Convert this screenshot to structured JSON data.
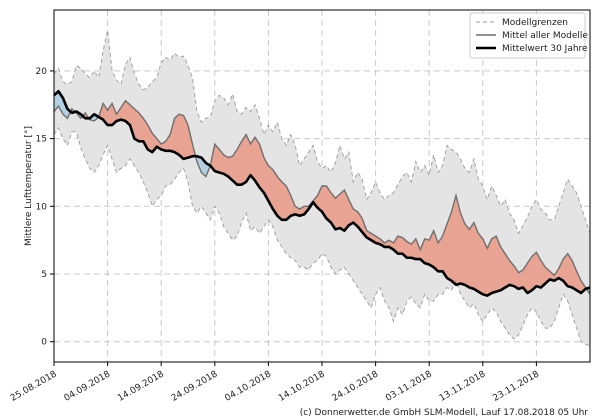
{
  "chart_data": {
    "type": "line",
    "title": "",
    "xlabel": "",
    "ylabel": "Mittlere Lufttemperatur [°]",
    "ylim": [
      -1.5,
      24.5
    ],
    "yticks": [
      0,
      5,
      10,
      15,
      20
    ],
    "xlim": [
      "25.08.2018",
      "03.12.2018"
    ],
    "xtick_labels": [
      "25.08.2018",
      "04.09.2018",
      "14.09.2018",
      "24.09.2018",
      "04.10.2018",
      "14.10.2018",
      "24.10.2018",
      "03.11.2018",
      "13.11.2018",
      "23.11.2018"
    ],
    "grid": true,
    "legend_position": "top-right",
    "legend": [
      {
        "key": "envelope",
        "label": "Modellgrenzen"
      },
      {
        "key": "mean",
        "label": "Mittel aller Modelle"
      },
      {
        "key": "climate",
        "label": "Mittelwert 30 Jahre"
      }
    ],
    "colors": {
      "envelope_fill": "#e4e4e4",
      "envelope_line": "#9a9a9a",
      "mean_line": "#6f6f6f",
      "climate_line": "#000000",
      "above": "#e8a393",
      "below": "#b3d1e3",
      "grid": "#c9c9c9"
    },
    "x": [
      0,
      1,
      2,
      3,
      4,
      5,
      6,
      7,
      8,
      9,
      10,
      11,
      12,
      13,
      14,
      15,
      16,
      17,
      18,
      19,
      20,
      21,
      22,
      23,
      24,
      25,
      26,
      27,
      28,
      29,
      30,
      31,
      32,
      33,
      34,
      35,
      36,
      37,
      38,
      39,
      40,
      41,
      42,
      43,
      44,
      45,
      46,
      47,
      48,
      49,
      50,
      51,
      52,
      53,
      54,
      55,
      56,
      57,
      58,
      59,
      60,
      61,
      62,
      63,
      64,
      65,
      66,
      67,
      68,
      69,
      70,
      71,
      72,
      73,
      74,
      75,
      76,
      77,
      78,
      79,
      80,
      81,
      82,
      83,
      84,
      85,
      86,
      87,
      88,
      89,
      90,
      91,
      92,
      93,
      94,
      95,
      96,
      97,
      98,
      99,
      100,
      101,
      102,
      103,
      104,
      105,
      106,
      107,
      108,
      109,
      110,
      111,
      112,
      113,
      114,
      115,
      116,
      117,
      118,
      119,
      120
    ],
    "series": [
      {
        "name": "Mittelwert 30 Jahre",
        "values": [
          18.2,
          18.5,
          18.0,
          17.2,
          16.9,
          17.0,
          16.8,
          16.5,
          16.5,
          16.8,
          16.6,
          16.4,
          16.0,
          16.0,
          16.3,
          16.4,
          16.3,
          16.0,
          15.0,
          14.8,
          14.8,
          14.2,
          14.0,
          14.4,
          14.2,
          14.1,
          14.1,
          14.0,
          13.8,
          13.5,
          13.6,
          13.7,
          13.7,
          13.6,
          13.2,
          13.0,
          12.6,
          12.5,
          12.4,
          12.2,
          11.9,
          11.6,
          11.6,
          11.8,
          12.3,
          11.9,
          11.4,
          11.0,
          10.4,
          9.8,
          9.3,
          9.0,
          9.0,
          9.3,
          9.4,
          9.3,
          9.4,
          9.8,
          10.3,
          9.9,
          9.6,
          9.1,
          8.8,
          8.3,
          8.4,
          8.2,
          8.6,
          8.8,
          8.5,
          8.1,
          7.7,
          7.5,
          7.3,
          7.2,
          7.0,
          7.0,
          6.8,
          6.5,
          6.5,
          6.2,
          6.2,
          6.1,
          6.1,
          5.8,
          5.7,
          5.5,
          5.2,
          5.2,
          4.7,
          4.5,
          4.2,
          4.3,
          4.2,
          4.0,
          3.9,
          3.7,
          3.5,
          3.4,
          3.6,
          3.7,
          3.8,
          4.0,
          4.2,
          4.1,
          3.9,
          4.0,
          3.6,
          3.8,
          4.1,
          4.0,
          4.3,
          4.6,
          4.5,
          4.7,
          4.5,
          4.1,
          4.0,
          3.8,
          3.6,
          3.9,
          4.0
        ]
      },
      {
        "name": "Mittel aller Modelle",
        "values": [
          17.0,
          17.4,
          16.8,
          16.5,
          17.2,
          16.9,
          16.5,
          16.9,
          16.4,
          16.3,
          16.6,
          17.6,
          17.1,
          17.6,
          16.8,
          17.3,
          17.8,
          17.5,
          17.2,
          16.9,
          16.5,
          16.0,
          15.4,
          15.0,
          14.6,
          14.8,
          15.3,
          16.5,
          16.8,
          16.7,
          16.0,
          14.6,
          13.3,
          12.5,
          12.2,
          13.0,
          14.6,
          14.2,
          13.8,
          13.6,
          13.7,
          14.2,
          14.8,
          15.3,
          14.6,
          15.1,
          14.6,
          13.6,
          13.0,
          12.7,
          12.2,
          11.8,
          11.5,
          10.8,
          10.0,
          9.8,
          10.0,
          10.0,
          10.4,
          10.8,
          11.5,
          11.5,
          11.0,
          10.6,
          10.9,
          11.2,
          10.5,
          9.8,
          9.6,
          9.1,
          8.2,
          8.0,
          7.8,
          7.6,
          7.3,
          7.5,
          7.3,
          7.8,
          7.7,
          7.4,
          7.2,
          7.6,
          6.8,
          7.6,
          7.5,
          8.2,
          7.3,
          7.8,
          8.7,
          9.6,
          10.8,
          9.5,
          8.7,
          8.3,
          8.8,
          8.0,
          7.6,
          6.9,
          7.6,
          7.8,
          7.0,
          6.5,
          6.0,
          5.6,
          5.1,
          5.3,
          5.8,
          6.3,
          6.6,
          6.0,
          5.5,
          5.2,
          4.9,
          5.4,
          6.1,
          6.5,
          6.0,
          5.2,
          4.5,
          4.0,
          3.5
        ]
      },
      {
        "name": "Modellgrenzen (oben)",
        "values": [
          19.8,
          20.2,
          19.2,
          19.0,
          19.2,
          20.4,
          20.2,
          19.8,
          19.5,
          20.0,
          19.5,
          21.5,
          23.0,
          20.0,
          19.3,
          19.0,
          20.5,
          21.0,
          19.8,
          19.0,
          18.6,
          18.8,
          19.2,
          19.5,
          20.6,
          21.0,
          20.8,
          21.3,
          21.0,
          21.1,
          20.4,
          19.5,
          17.0,
          16.2,
          16.5,
          16.6,
          17.8,
          18.2,
          18.0,
          17.5,
          18.3,
          17.0,
          16.8,
          17.3,
          17.0,
          17.5,
          16.5,
          15.3,
          16.0,
          15.5,
          16.2,
          15.0,
          14.5,
          15.3,
          14.5,
          13.0,
          13.5,
          14.0,
          14.5,
          13.3,
          12.8,
          13.0,
          12.5,
          13.2,
          14.5,
          13.5,
          14.0,
          11.8,
          12.5,
          12.0,
          10.5,
          11.0,
          11.8,
          11.0,
          10.5,
          10.8,
          11.0,
          11.6,
          12.2,
          12.5,
          11.8,
          13.3,
          12.5,
          13.0,
          12.3,
          13.8,
          12.5,
          13.0,
          14.5,
          14.2,
          14.0,
          13.5,
          12.8,
          12.5,
          13.5,
          12.0,
          11.5,
          10.5,
          11.5,
          10.8,
          10.0,
          10.5,
          9.5,
          9.0,
          8.0,
          8.6,
          9.2,
          10.0,
          10.5,
          9.8,
          9.5,
          9.0,
          9.0,
          10.0,
          11.0,
          12.0,
          11.5,
          11.0,
          10.0,
          9.0,
          8.0
        ]
      },
      {
        "name": "Modellgrenzen (unten)",
        "values": [
          15.3,
          15.8,
          15.0,
          14.5,
          15.5,
          15.5,
          14.3,
          13.5,
          12.8,
          12.5,
          13.0,
          13.8,
          14.5,
          13.5,
          12.5,
          12.8,
          13.0,
          13.5,
          13.0,
          12.5,
          11.8,
          11.0,
          10.0,
          10.5,
          10.8,
          11.5,
          11.6,
          12.0,
          12.5,
          12.8,
          11.8,
          10.0,
          9.5,
          10.0,
          9.5,
          9.0,
          10.0,
          9.5,
          8.5,
          8.0,
          7.5,
          7.8,
          8.8,
          9.5,
          8.2,
          8.5,
          8.0,
          8.5,
          9.0,
          8.5,
          7.5,
          7.0,
          6.5,
          6.2,
          6.0,
          5.5,
          5.5,
          5.3,
          5.8,
          6.0,
          6.5,
          6.3,
          5.5,
          5.0,
          5.3,
          5.5,
          5.0,
          4.5,
          4.0,
          3.5,
          3.0,
          2.5,
          3.5,
          4.0,
          3.0,
          2.5,
          1.5,
          2.5,
          2.0,
          3.0,
          3.3,
          2.8,
          2.5,
          3.5,
          3.0,
          3.0,
          3.5,
          3.5,
          4.0,
          3.8,
          4.5,
          3.5,
          3.0,
          2.5,
          2.8,
          2.0,
          1.5,
          2.0,
          2.5,
          2.2,
          1.5,
          1.0,
          0.5,
          0.2,
          0.5,
          1.2,
          2.0,
          2.5,
          2.2,
          1.5,
          1.0,
          1.0,
          1.5,
          2.5,
          3.5,
          3.0,
          2.0,
          1.0,
          0.0,
          -0.2,
          -0.3
        ]
      }
    ]
  },
  "credit": "(c) Donnerwetter.de GmbH SLM-Modell, Lauf 17.08.2018 05 Uhr"
}
